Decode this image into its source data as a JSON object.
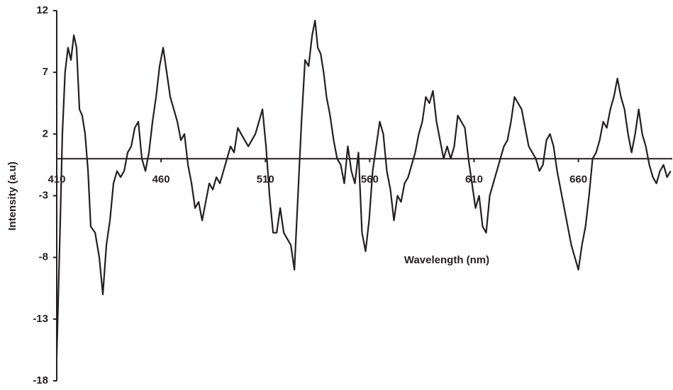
{
  "chart_data": {
    "type": "line",
    "xlabel": "Wavelength (nm)",
    "ylabel": "Intensity (a.u)",
    "xlim": [
      410,
      705
    ],
    "ylim": [
      -18,
      12
    ],
    "xticks": [
      410,
      460,
      510,
      560,
      610,
      660
    ],
    "yticks": [
      12,
      7,
      2,
      -3,
      -8,
      -13,
      -18
    ],
    "grid": false,
    "x": [
      410,
      411.7,
      412.7,
      414,
      415.4,
      416.8,
      418.2,
      419.5,
      420.9,
      422.2,
      423.6,
      425,
      426.3,
      428.4,
      430.4,
      432.1,
      433.8,
      435.5,
      437.2,
      438.9,
      440.6,
      442.3,
      444,
      445.7,
      447.4,
      449.1,
      450.8,
      452.5,
      454.2,
      455.9,
      457.6,
      459.3,
      461,
      462.7,
      464.4,
      466.1,
      467.8,
      469.5,
      471.2,
      472.9,
      474.6,
      476.3,
      478,
      479.7,
      481.4,
      483.1,
      484.8,
      486.5,
      488.2,
      489.9,
      491.6,
      493.3,
      495,
      496.8,
      498.4,
      500.1,
      501.8,
      503.5,
      505.2,
      506.9,
      508.6,
      510.3,
      512,
      513.7,
      515.4,
      517.1,
      518.8,
      520.5,
      522.2,
      523.9,
      525.6,
      527.3,
      529,
      530.7,
      532.4,
      533.8,
      535.1,
      536.5,
      537.9,
      539.3,
      541,
      542.7,
      544.4,
      546.1,
      547.8,
      549.5,
      551.2,
      552.9,
      554.6,
      556.3,
      558,
      559.7,
      561.4,
      563.1,
      564.8,
      566.5,
      568.2,
      569.9,
      571.6,
      573.3,
      575,
      576.7,
      578.4,
      580.1,
      581.8,
      583.5,
      585.2,
      586.9,
      588.6,
      590.3,
      592,
      593.7,
      595.4,
      597.1,
      598.8,
      600.5,
      602.2,
      603.9,
      605.6,
      607.3,
      609,
      610.7,
      612.4,
      614.1,
      615.8,
      617.5,
      619.2,
      620.9,
      622.6,
      624.3,
      626,
      627.7,
      629.4,
      631.1,
      632.8,
      634.5,
      636.2,
      637.9,
      639.6,
      641.3,
      643,
      644.7,
      646.4,
      648.1,
      649.8,
      651.5,
      653.2,
      654.9,
      656.6,
      658.3,
      660,
      661.7,
      663.4,
      665.1,
      666.8,
      668.5,
      670.2,
      671.9,
      673.6,
      675.3,
      677,
      678.7,
      680.4,
      682.1,
      683.8,
      685.5,
      687.2,
      688.9,
      690.6,
      692.3,
      694,
      695.7,
      697.4,
      699.1,
      700.8,
      702.5,
      704.2
    ],
    "series": [
      {
        "name": "Intensity",
        "color": "#231f20",
        "values": [
          -16,
          -5,
          2,
          7,
          9,
          8,
          10,
          9,
          4,
          3.5,
          2,
          -1,
          -5.5,
          -6,
          -8,
          -11,
          -7,
          -5,
          -2,
          -1,
          -1.5,
          -1,
          0.5,
          1,
          2.5,
          3,
          0,
          -1,
          0.5,
          3,
          5,
          7.5,
          9,
          7,
          5,
          4,
          3,
          1.5,
          2,
          -0.5,
          -2,
          -4,
          -3.5,
          -5,
          -3.5,
          -2,
          -2.5,
          -1.5,
          -2,
          -1,
          0,
          1,
          0.5,
          2.5,
          2,
          1.5,
          1,
          1.5,
          2,
          3,
          4,
          1,
          -3,
          -6,
          -6,
          -4,
          -6,
          -6.5,
          -7,
          -9,
          -3,
          3,
          8,
          7.5,
          10,
          11.2,
          9,
          8.5,
          7,
          5,
          3.5,
          1.5,
          0,
          -0.5,
          -2,
          1,
          -1,
          -2,
          0.5,
          -6,
          -7.5,
          -5,
          -1,
          1,
          3,
          2,
          -1,
          -2.5,
          -5,
          -3,
          -3.5,
          -2,
          -1.5,
          -0.5,
          0.5,
          2,
          3,
          5,
          4.5,
          5.5,
          3,
          1.5,
          0,
          1,
          0,
          1,
          3.5,
          3,
          2.5,
          0,
          -2,
          -4,
          -3,
          -5.5,
          -6,
          -3,
          -2,
          -1,
          0,
          1,
          1.5,
          3,
          5,
          4.5,
          4,
          2.5,
          1,
          0.5,
          0,
          -1,
          -0.5,
          1.5,
          2,
          1,
          -1,
          -2.5,
          -4,
          -5.5,
          -7,
          -8,
          -9,
          -7,
          -5.5,
          -3,
          0,
          0.5,
          1.5,
          3,
          2.5,
          4,
          5,
          6.5,
          5,
          4,
          2,
          0.5,
          2,
          4,
          2,
          1,
          -0.5,
          -1.5,
          -2,
          -1,
          -0.5,
          -1.5,
          -1
        ]
      }
    ]
  }
}
